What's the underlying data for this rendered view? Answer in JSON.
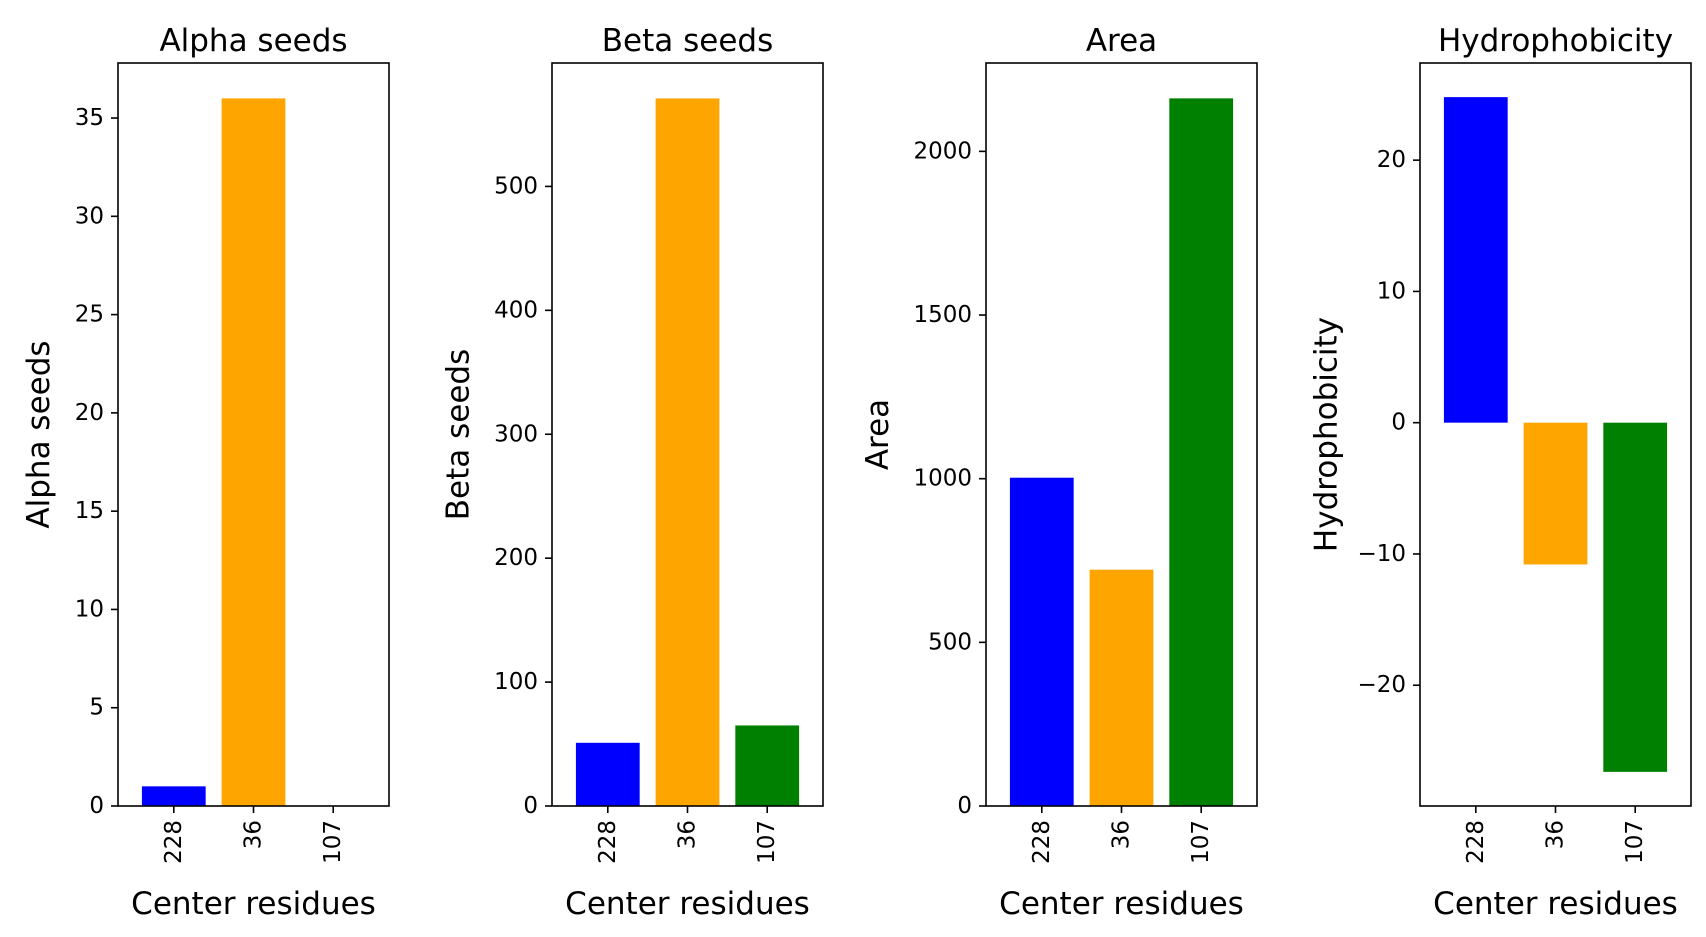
{
  "chart_data": [
    {
      "type": "bar",
      "title": "Alpha seeds",
      "xlabel": "Center residues",
      "ylabel": "Alpha seeds",
      "categories": [
        "228",
        "36",
        "107"
      ],
      "values": [
        1,
        36,
        0
      ],
      "colors": [
        "#0000ff",
        "#ffa500",
        "#008000"
      ],
      "ylim": [
        0,
        37.8
      ],
      "yticks": [
        0,
        5,
        10,
        15,
        20,
        25,
        30,
        35
      ],
      "ytick_labels": [
        "0",
        "5",
        "10",
        "15",
        "20",
        "25",
        "30",
        "35"
      ]
    },
    {
      "type": "bar",
      "title": "Beta seeds",
      "xlabel": "Center residues",
      "ylabel": "Beta seeds",
      "categories": [
        "228",
        "36",
        "107"
      ],
      "values": [
        51,
        571,
        65
      ],
      "colors": [
        "#0000ff",
        "#ffa500",
        "#008000"
      ],
      "ylim": [
        0,
        599.6
      ],
      "yticks": [
        0,
        100,
        200,
        300,
        400,
        500
      ],
      "ytick_labels": [
        "0",
        "100",
        "200",
        "300",
        "400",
        "500"
      ]
    },
    {
      "type": "bar",
      "title": "Area",
      "xlabel": "Center residues",
      "ylabel": "Area",
      "categories": [
        "228",
        "36",
        "107"
      ],
      "values": [
        1003,
        722,
        2162
      ],
      "colors": [
        "#0000ff",
        "#ffa500",
        "#008000"
      ],
      "ylim": [
        0,
        2270
      ],
      "yticks": [
        0,
        500,
        1000,
        1500,
        2000
      ],
      "ytick_labels": [
        "0",
        "500",
        "1000",
        "1500",
        "2000"
      ]
    },
    {
      "type": "bar",
      "title": "Hydrophobicity",
      "xlabel": "Center residues",
      "ylabel": "Hydrophobicity",
      "categories": [
        "228",
        "36",
        "107"
      ],
      "values": [
        24.8,
        -10.8,
        -26.6
      ],
      "colors": [
        "#0000ff",
        "#ffa500",
        "#008000"
      ],
      "ylim": [
        -29.2,
        27.4
      ],
      "yticks": [
        -20,
        -10,
        0,
        10,
        20
      ],
      "ytick_labels": [
        "−20",
        "−10",
        "0",
        "10",
        "20"
      ]
    }
  ]
}
